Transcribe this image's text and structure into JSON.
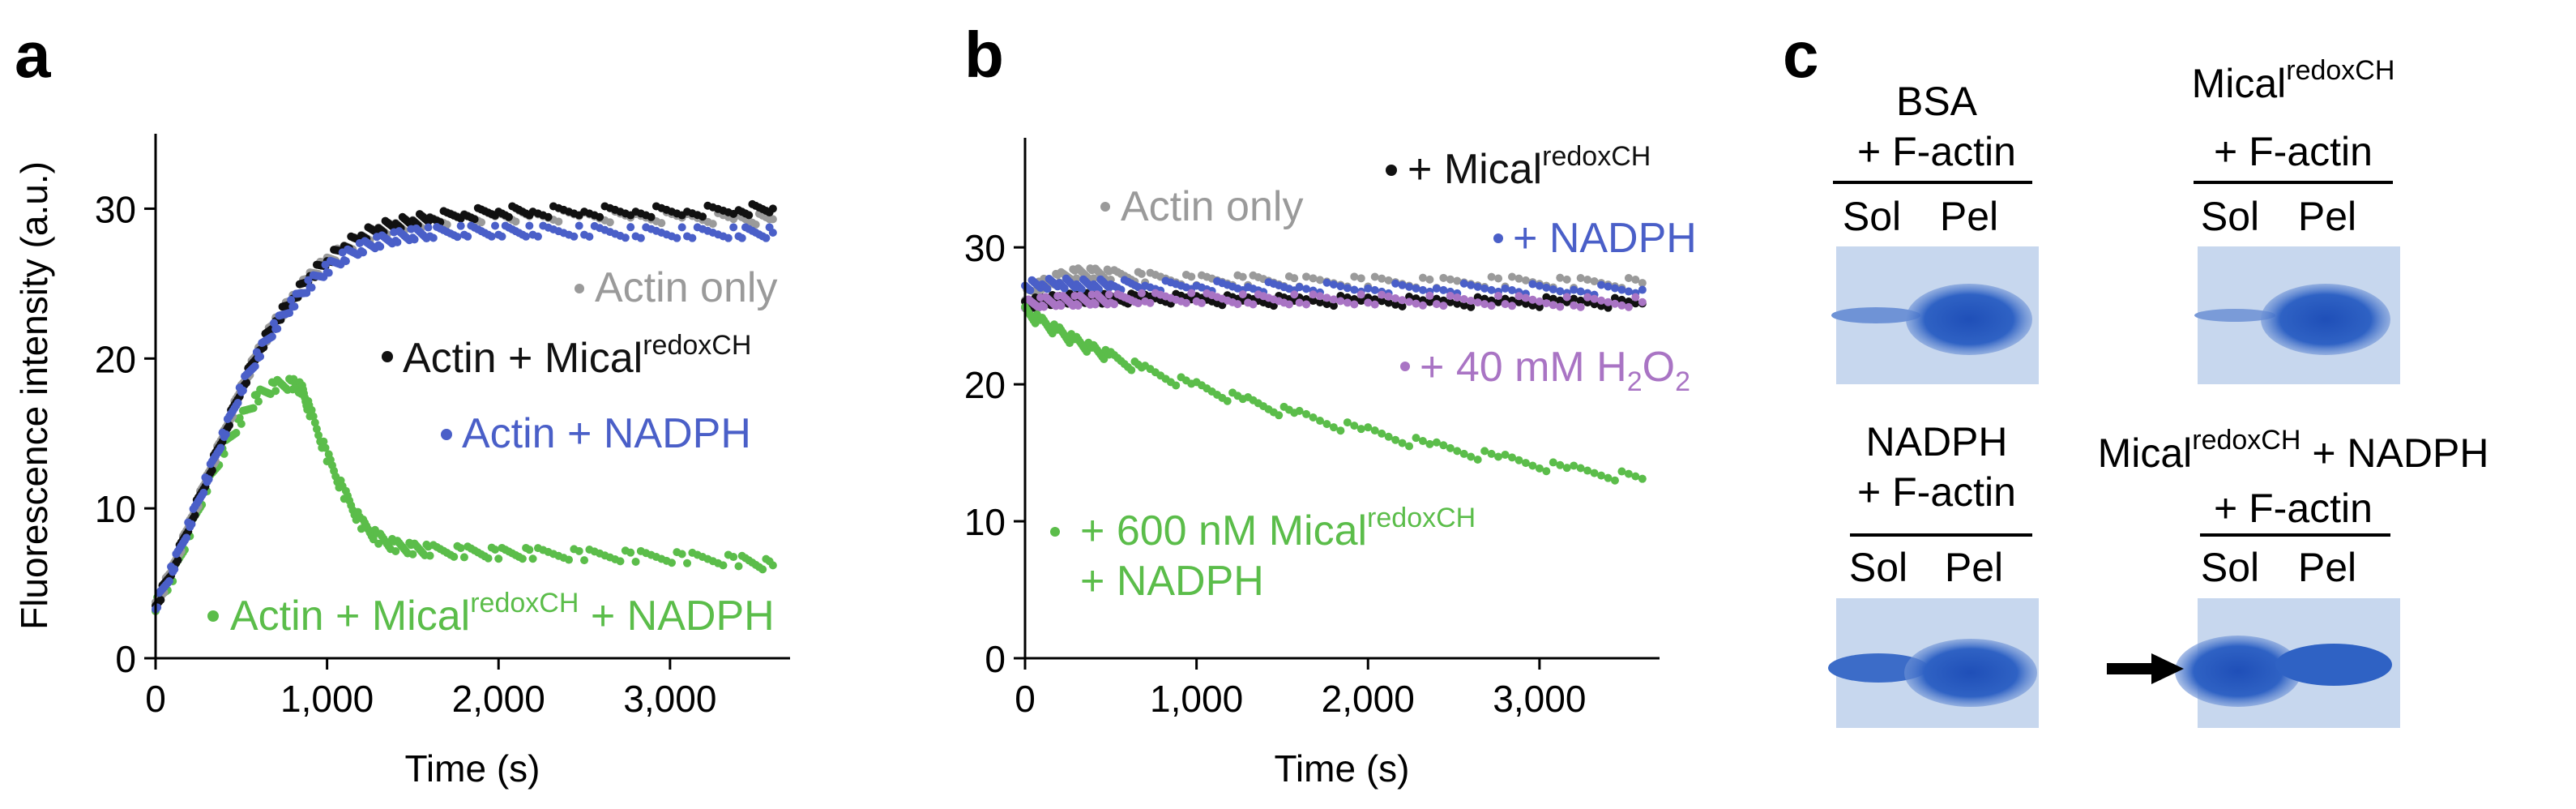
{
  "panel_labels": {
    "a": "a",
    "b": "b",
    "c": "c"
  },
  "colors": {
    "black": "#111111",
    "gray": "#9a9a9a",
    "blue": "#4a5fc8",
    "green": "#5bbd4a",
    "purple": "#a974c4",
    "gel_bg": "#c7d7ee",
    "gel_band": "#2f62c4"
  },
  "chart_data": [
    {
      "id": "a",
      "type": "scatter",
      "xlabel": "Time (s)",
      "ylabel": "Fluorescence intensity (a.u.)",
      "xlim": [
        0,
        3700
      ],
      "ylim": [
        0,
        35
      ],
      "xticks": [
        0,
        1000,
        2000,
        3000
      ],
      "xtick_labels": [
        "0",
        "1,000",
        "2,000",
        "3,000"
      ],
      "yticks": [
        0,
        10,
        20,
        30
      ],
      "ytick_labels": [
        "0",
        "10",
        "20",
        "30"
      ],
      "series": [
        {
          "name": "Actin + Mical NADPH",
          "color": "green",
          "label_parts": [
            "Actin + Mical",
            "redoxCH",
            " + NADPH"
          ],
          "x": [
            0,
            100,
            200,
            300,
            400,
            500,
            600,
            700,
            800,
            850,
            900,
            1000,
            1100,
            1200,
            1300,
            1400,
            1500,
            1600,
            1800,
            2000,
            2200,
            2500,
            2800,
            3100,
            3400,
            3600
          ],
          "y": [
            3.5,
            5.5,
            8.5,
            11.5,
            14,
            16,
            17.5,
            18.2,
            18.3,
            18,
            16.5,
            13.5,
            11,
            9,
            8,
            7.5,
            7.3,
            7.2,
            7.1,
            7.0,
            7.0,
            6.9,
            6.8,
            6.7,
            6.5,
            6.2
          ]
        },
        {
          "name": "Actin only",
          "color": "gray",
          "label_parts": [
            "Actin only"
          ],
          "x": [
            0,
            100,
            200,
            300,
            400,
            500,
            600,
            700,
            800,
            900,
            1000,
            1100,
            1200,
            1300,
            1400,
            1500,
            1600,
            1800,
            2000,
            2200,
            2500,
            2800,
            3100,
            3400,
            3600
          ],
          "y": [
            3.5,
            6,
            9,
            12,
            15,
            18,
            20.5,
            22.5,
            24,
            25.5,
            26.5,
            27.3,
            28,
            28.5,
            28.8,
            29,
            29.2,
            29.4,
            29.5,
            29.5,
            29.5,
            29.4,
            29.4,
            29.3,
            29.3
          ]
        },
        {
          "name": "Actin + Mical",
          "color": "black",
          "label_parts": [
            "Actin + Mical",
            "redoxCH"
          ],
          "x": [
            0,
            100,
            200,
            300,
            400,
            500,
            600,
            700,
            800,
            900,
            1000,
            1100,
            1200,
            1300,
            1400,
            1500,
            1600,
            1800,
            2000,
            2200,
            2500,
            2800,
            3100,
            3400,
            3600
          ],
          "y": [
            3.5,
            6,
            9,
            12,
            15,
            18,
            20.5,
            22.5,
            24,
            25.5,
            26.5,
            27.5,
            28.2,
            28.7,
            29,
            29.2,
            29.4,
            29.6,
            29.8,
            29.8,
            29.8,
            29.8,
            29.8,
            29.9,
            30
          ]
        },
        {
          "name": "Actin + NADPH",
          "color": "blue",
          "label_parts": [
            "Actin + NADPH"
          ],
          "x": [
            0,
            100,
            200,
            300,
            400,
            500,
            600,
            700,
            800,
            900,
            1000,
            1100,
            1200,
            1300,
            1400,
            1500,
            1600,
            1800,
            2000,
            2200,
            2500,
            2800,
            3100,
            3400,
            3600
          ],
          "y": [
            3.5,
            6,
            9,
            12,
            15,
            18,
            20.3,
            22.2,
            23.7,
            25,
            26,
            26.8,
            27.4,
            27.8,
            28.1,
            28.3,
            28.4,
            28.5,
            28.5,
            28.5,
            28.5,
            28.4,
            28.4,
            28.4,
            28.4
          ]
        }
      ]
    },
    {
      "id": "b",
      "type": "scatter",
      "xlabel": "Time (s)",
      "ylabel": "",
      "xlim": [
        0,
        3700
      ],
      "ylim": [
        0,
        38
      ],
      "xticks": [
        0,
        1000,
        2000,
        3000
      ],
      "xtick_labels": [
        "0",
        "1,000",
        "2,000",
        "3,000"
      ],
      "yticks": [
        0,
        10,
        20,
        30
      ],
      "ytick_labels": [
        "0",
        "10",
        "20",
        "30"
      ],
      "series": [
        {
          "name": "Actin only",
          "color": "gray",
          "label_parts": [
            "Actin only"
          ],
          "x": [
            0,
            100,
            200,
            300,
            400,
            500,
            700,
            1000,
            1300,
            1600,
            2000,
            2400,
            2800,
            3200,
            3600
          ],
          "y": [
            26.5,
            27.3,
            27.8,
            28.1,
            28.1,
            28.0,
            27.8,
            27.6,
            27.6,
            27.5,
            27.5,
            27.4,
            27.5,
            27.4,
            27.4
          ]
        },
        {
          "name": "+ Mical",
          "color": "black",
          "label_parts": [
            "+ Mical",
            "redoxCH"
          ],
          "x": [
            0,
            100,
            200,
            300,
            400,
            500,
            700,
            1000,
            1300,
            1600,
            2000,
            2400,
            2800,
            3200,
            3600
          ],
          "y": [
            25.8,
            26.1,
            26.2,
            26.3,
            26.3,
            26.2,
            26.3,
            26.2,
            26.1,
            26.1,
            26.1,
            26.0,
            26.0,
            26.0,
            25.9
          ]
        },
        {
          "name": "+ NADPH",
          "color": "blue",
          "label_parts": [
            "+ NADPH"
          ],
          "x": [
            0,
            100,
            200,
            300,
            400,
            500,
            700,
            1000,
            1300,
            1600,
            2000,
            2400,
            2800,
            3200,
            3600
          ],
          "y": [
            27.2,
            27.3,
            27.4,
            27.3,
            27.3,
            27.3,
            27.2,
            27.2,
            27.1,
            27.1,
            27.0,
            27.0,
            27.0,
            26.9,
            26.9
          ]
        },
        {
          "name": "+ 40 mM H2O2",
          "color": "purple",
          "label_parts": [
            "+ 40 mM H",
            "2",
            "O",
            "2"
          ],
          "x": [
            0,
            100,
            200,
            300,
            400,
            500,
            700,
            1000,
            1300,
            1600,
            2000,
            2400,
            2800,
            3200,
            3600
          ],
          "y": [
            25.8,
            26.0,
            26.1,
            26.1,
            26.2,
            26.2,
            26.3,
            26.3,
            26.2,
            26.2,
            26.2,
            26.1,
            26.1,
            26.0,
            26.0
          ]
        },
        {
          "name": "+ 600 nM Mical + NADPH",
          "color": "green",
          "label_parts": [
            "+ 600 nM Mical",
            "redoxCH",
            "+ NADPH"
          ],
          "x": [
            0,
            100,
            200,
            300,
            400,
            500,
            700,
            1000,
            1300,
            1600,
            2000,
            2400,
            2800,
            3200,
            3600
          ],
          "y": [
            25.3,
            24.5,
            23.8,
            23.1,
            22.5,
            22.0,
            21.0,
            19.8,
            18.7,
            17.7,
            16.5,
            15.4,
            14.5,
            13.7,
            13.1
          ]
        }
      ]
    }
  ],
  "gels": {
    "sol_label": "Sol",
    "pel_label": "Pel",
    "panels": [
      {
        "id": "bsa",
        "title_parts": [
          "BSA"
        ],
        "subtitle": "+ F-actin",
        "sol_intensity": 0.3,
        "pel_intensity": 1.0,
        "arrow": false
      },
      {
        "id": "mical",
        "title_parts": [
          "Mical",
          "redoxCH"
        ],
        "subtitle": "+ F-actin",
        "sol_intensity": 0.25,
        "pel_intensity": 1.0,
        "arrow": false
      },
      {
        "id": "nadph",
        "title_parts": [
          "NADPH"
        ],
        "subtitle": "+ F-actin",
        "sol_intensity": 0.55,
        "pel_intensity": 1.0,
        "arrow": false
      },
      {
        "id": "mical-nadph",
        "title_parts": [
          "Mical",
          "redoxCH",
          " + NADPH"
        ],
        "subtitle": "+ F-actin",
        "sol_intensity": 1.0,
        "pel_intensity": 0.75,
        "arrow": true
      }
    ]
  }
}
